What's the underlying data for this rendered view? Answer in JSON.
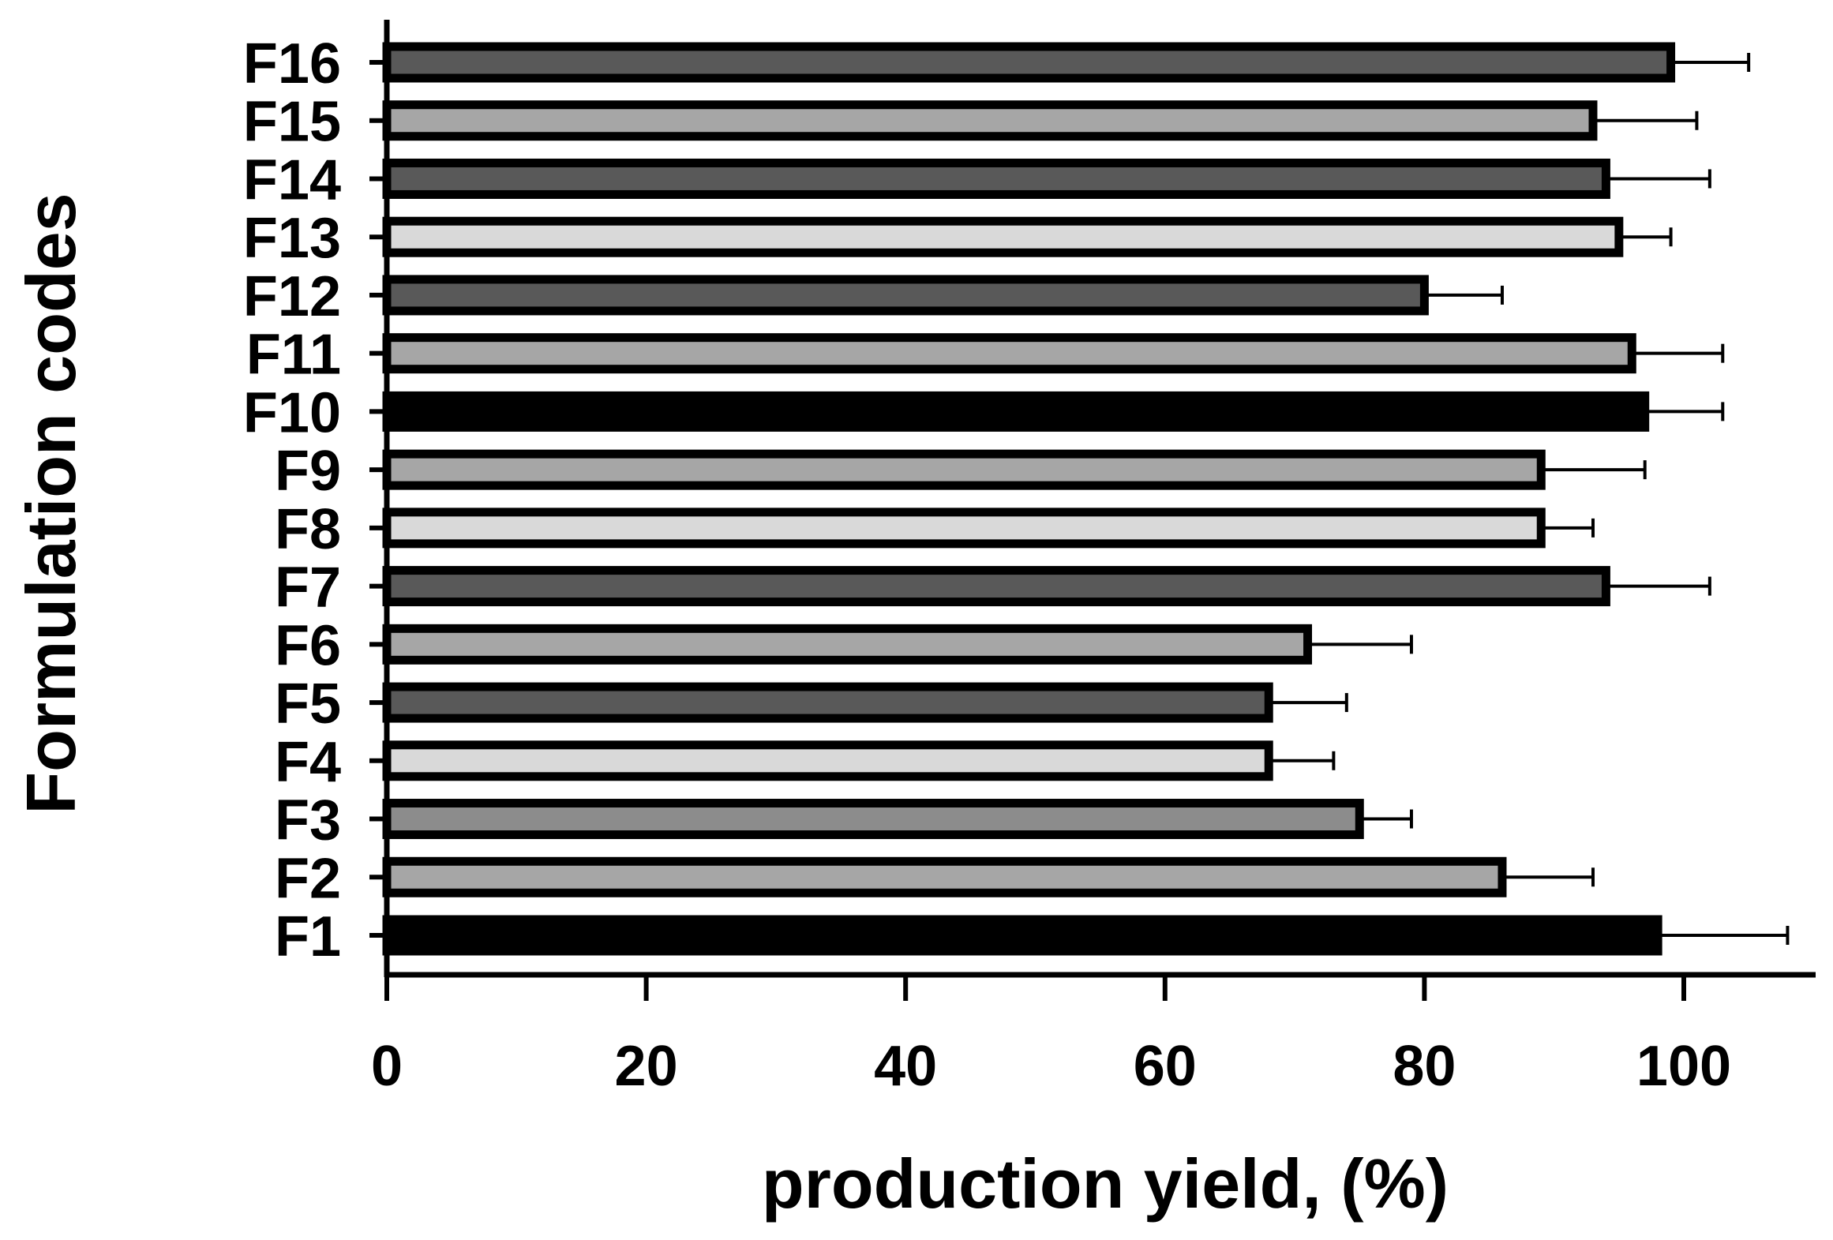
{
  "chart_data": {
    "type": "bar",
    "orientation": "horizontal",
    "title": "",
    "xlabel": "production yield, (%)",
    "ylabel": "Formulation codes",
    "xlim": [
      0,
      110
    ],
    "xticks": [
      0,
      20,
      40,
      60,
      80,
      100
    ],
    "grid": false,
    "legend": "none",
    "categories": [
      "F1",
      "F2",
      "F3",
      "F4",
      "F5",
      "F6",
      "F7",
      "F8",
      "F9",
      "F10",
      "F11",
      "F12",
      "F13",
      "F14",
      "F15",
      "F16"
    ],
    "values": [
      98,
      86,
      75,
      68,
      68,
      71,
      94,
      89,
      89,
      97,
      96,
      80,
      95,
      94,
      93,
      99
    ],
    "errors": [
      10,
      7,
      4,
      5,
      6,
      8,
      8,
      4,
      8,
      6,
      7,
      6,
      4,
      8,
      8,
      6
    ],
    "bar_fills": [
      "#000000",
      "#a6a6a6",
      "#8c8c8c",
      "#d9d9d9",
      "#595959",
      "#a6a6a6",
      "#595959",
      "#d9d9d9",
      "#a6a6a6",
      "#000000",
      "#a6a6a6",
      "#595959",
      "#d9d9d9",
      "#595959",
      "#a6a6a6",
      "#595959"
    ],
    "outline_color": "#000000"
  }
}
